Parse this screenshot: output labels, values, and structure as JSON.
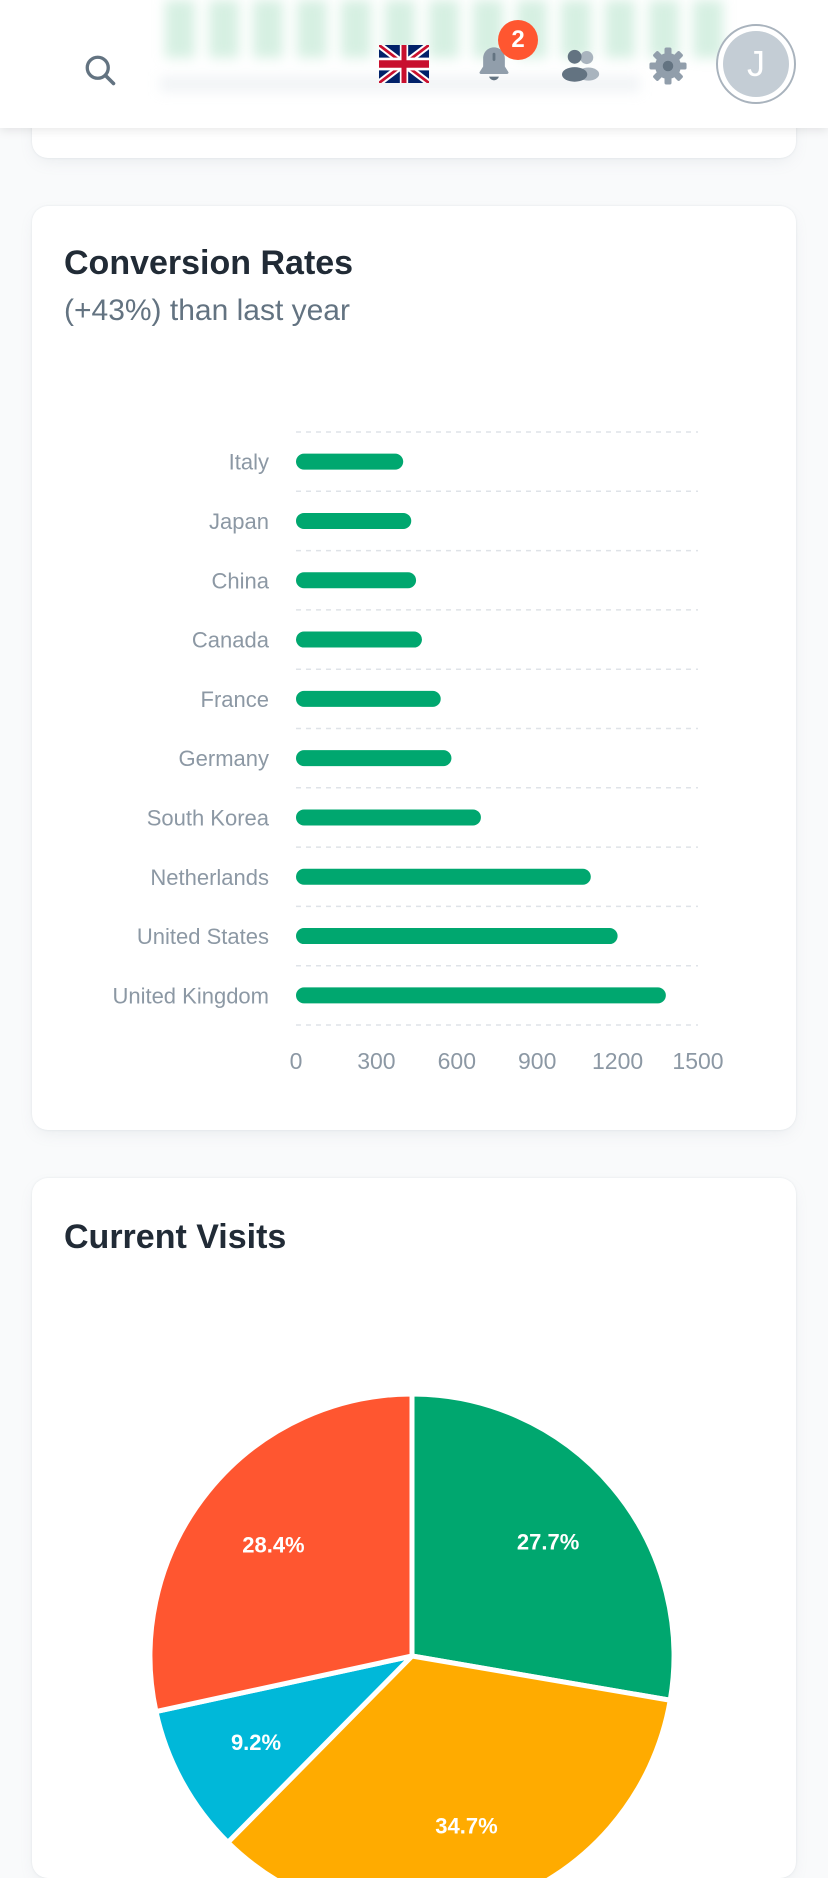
{
  "header": {
    "language_flag": "uk-flag-icon",
    "notifications_count": "2",
    "avatar_initial": "J"
  },
  "conversion_card": {
    "title": "Conversion Rates",
    "subtitle": "(+43%) than last year"
  },
  "visits_card": {
    "title": "Current Visits"
  },
  "colors": {
    "bar": "#00a76f",
    "badge": "#ff5630",
    "pie": [
      "#00a76f",
      "#ffab00",
      "#00b8d9",
      "#ff5630"
    ]
  },
  "chart_data": [
    {
      "type": "bar",
      "orientation": "horizontal",
      "categories": [
        "Italy",
        "Japan",
        "China",
        "Canada",
        "France",
        "Germany",
        "South Korea",
        "Netherlands",
        "United States",
        "United Kingdom"
      ],
      "values": [
        400,
        430,
        448,
        470,
        540,
        580,
        690,
        1100,
        1200,
        1380
      ],
      "xlim": [
        0,
        1500
      ],
      "xticks": [
        "0",
        "300",
        "600",
        "900",
        "1200",
        "1500"
      ],
      "grid": true,
      "title": "Conversion Rates",
      "subtitle": "(+43%) than last year"
    },
    {
      "type": "pie",
      "title": "Current Visits",
      "slices": [
        {
          "label": "27.7%",
          "value": 27.7,
          "color": "#00a76f"
        },
        {
          "label": "34.7%",
          "value": 34.7,
          "color": "#ffab00"
        },
        {
          "label": "9.2%",
          "value": 9.2,
          "color": "#00b8d9"
        },
        {
          "label": "28.4%",
          "value": 28.4,
          "color": "#ff5630"
        }
      ]
    }
  ]
}
